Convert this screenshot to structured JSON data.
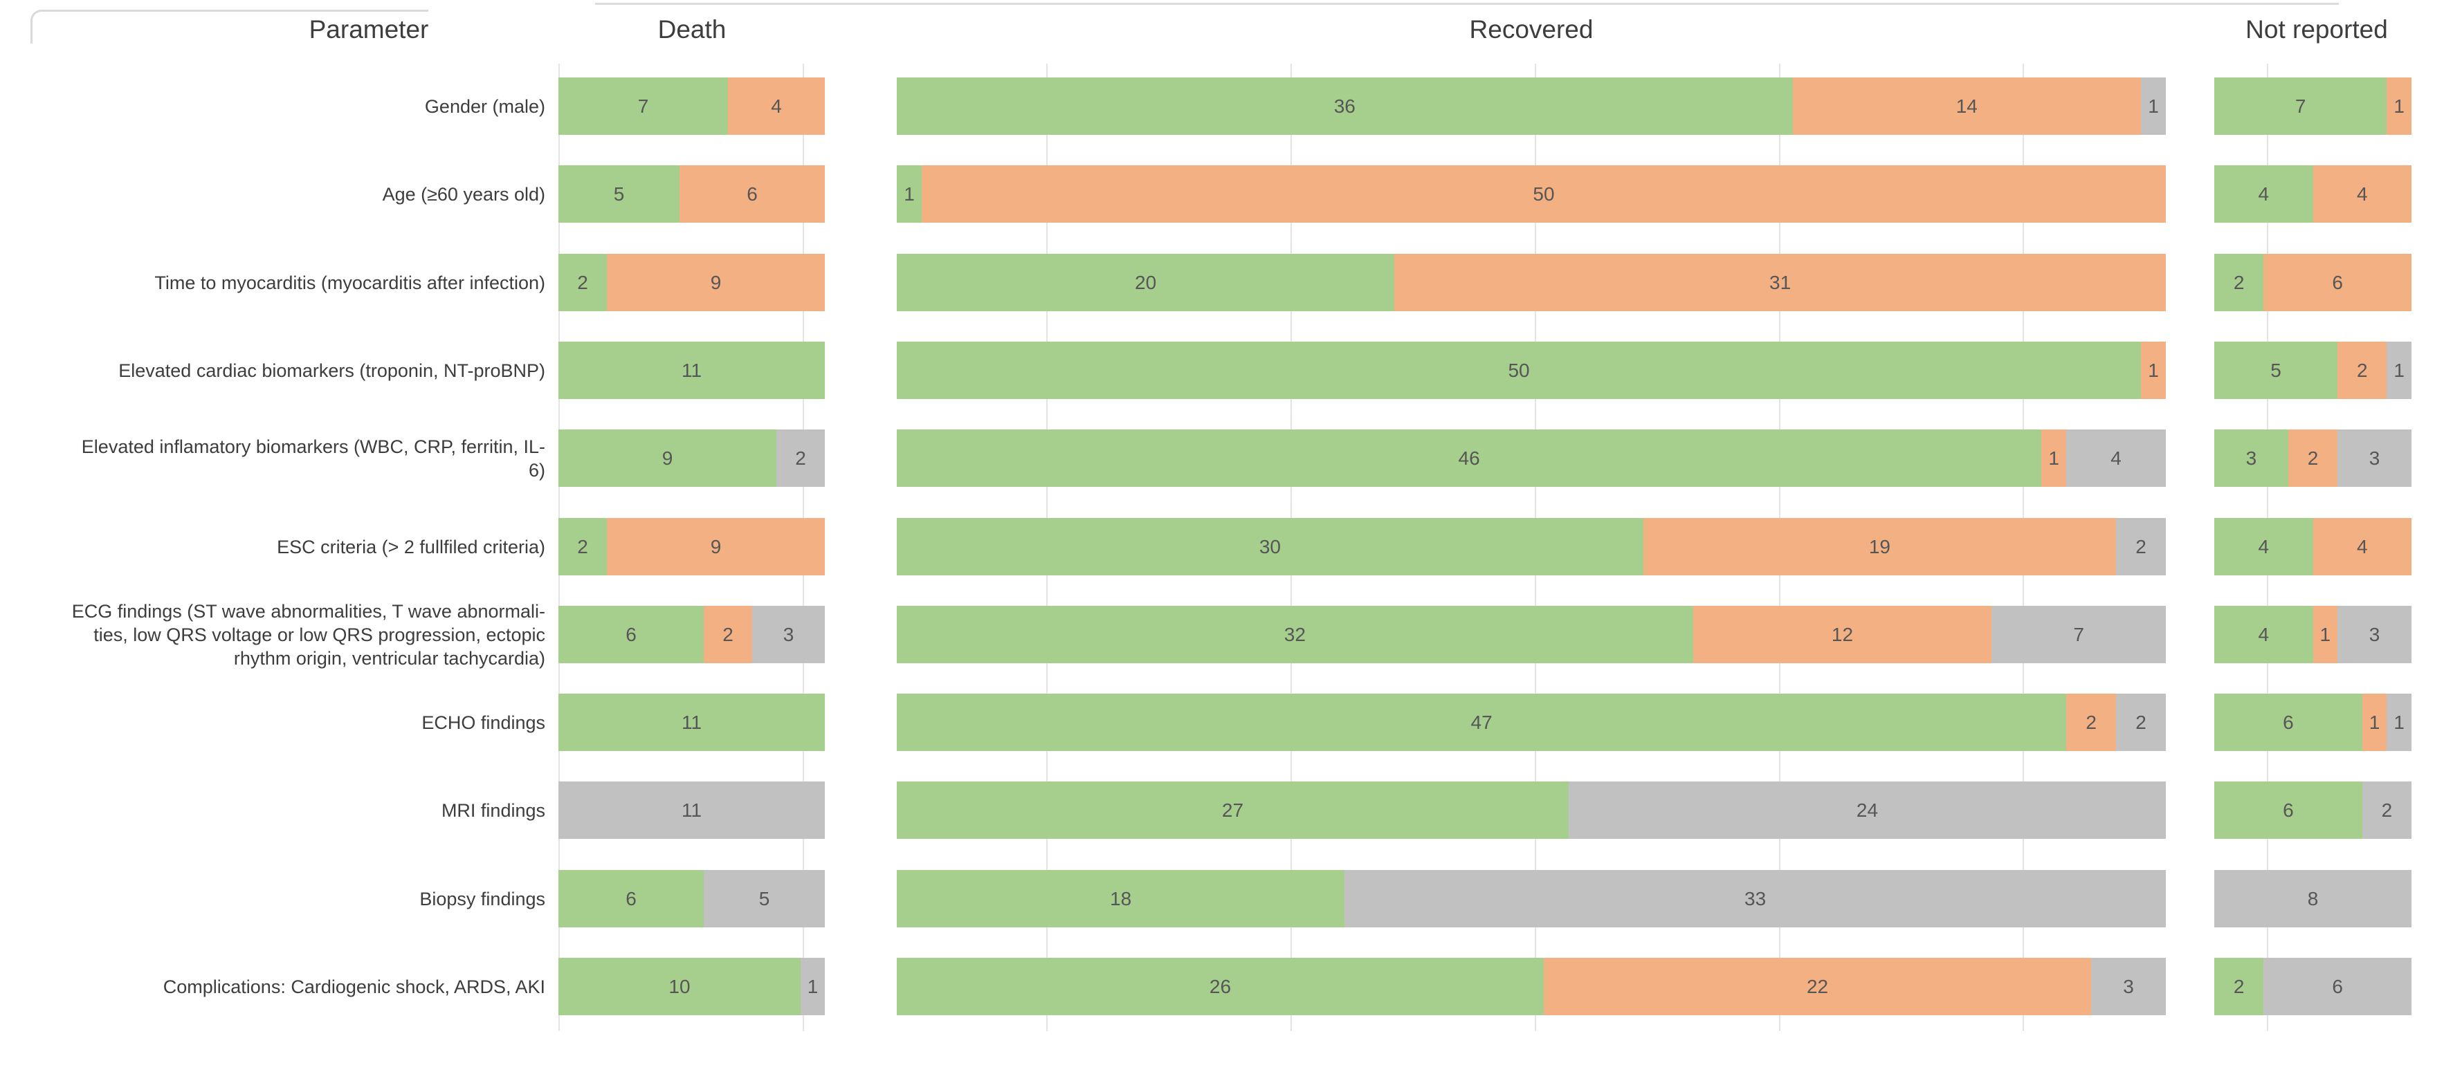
{
  "headers": {
    "parameter": "Parameter",
    "death": "Death",
    "recovered": "Recovered",
    "not_reported": "Not reported"
  },
  "palette": {
    "green": "#a6cf8d",
    "orange": "#f3b183",
    "gray": "#c1c1c1",
    "gridline": "#e4e4e4",
    "label_text": "#3d3d3d",
    "value_text": "#565656",
    "frame": "#dadada"
  },
  "rows": [
    {
      "label": "Gender (male)",
      "death": [
        [
          "green",
          7
        ],
        [
          "orange",
          4
        ]
      ],
      "recovered": [
        [
          "green",
          36
        ],
        [
          "orange",
          14
        ],
        [
          "gray",
          1
        ]
      ],
      "not_reported": [
        [
          "green",
          7
        ],
        [
          "orange",
          1
        ]
      ]
    },
    {
      "label": "Age (≥60 years old)",
      "death": [
        [
          "green",
          5
        ],
        [
          "orange",
          6
        ]
      ],
      "recovered": [
        [
          "green",
          1
        ],
        [
          "orange",
          50
        ]
      ],
      "not_reported": [
        [
          "green",
          4
        ],
        [
          "orange",
          4
        ]
      ]
    },
    {
      "label": "Time to myocarditis (myocarditis after infection)",
      "death": [
        [
          "green",
          2
        ],
        [
          "orange",
          9
        ]
      ],
      "recovered": [
        [
          "green",
          20
        ],
        [
          "orange",
          31
        ]
      ],
      "not_reported": [
        [
          "green",
          2
        ],
        [
          "orange",
          6
        ]
      ]
    },
    {
      "label": "Elevated cardiac biomarkers (troponin, NT-proBNP)",
      "death": [
        [
          "green",
          11
        ]
      ],
      "recovered": [
        [
          "green",
          50
        ],
        [
          "orange",
          1
        ]
      ],
      "not_reported": [
        [
          "green",
          5
        ],
        [
          "orange",
          2
        ],
        [
          "gray",
          1
        ]
      ]
    },
    {
      "label": "Elevated inflamatory biomarkers (WBC, CRP, ferritin, IL-\n6)",
      "death": [
        [
          "green",
          9
        ],
        [
          "gray",
          2
        ]
      ],
      "recovered": [
        [
          "green",
          46
        ],
        [
          "orange",
          1
        ],
        [
          "gray",
          4
        ]
      ],
      "not_reported": [
        [
          "green",
          3
        ],
        [
          "orange",
          2
        ],
        [
          "gray",
          3
        ]
      ]
    },
    {
      "label": "ESC criteria (> 2 fullfiled criteria)",
      "death": [
        [
          "green",
          2
        ],
        [
          "orange",
          9
        ]
      ],
      "recovered": [
        [
          "green",
          30
        ],
        [
          "orange",
          19
        ],
        [
          "gray",
          2
        ]
      ],
      "not_reported": [
        [
          "green",
          4
        ],
        [
          "orange",
          4
        ]
      ]
    },
    {
      "label": "ECG findings (ST wave abnormalities, T wave abnormali-\nties, low QRS voltage or low QRS progression, ectopic\nrhythm origin, ventricular tachycardia)",
      "death": [
        [
          "green",
          6
        ],
        [
          "orange",
          2
        ],
        [
          "gray",
          3
        ]
      ],
      "recovered": [
        [
          "green",
          32
        ],
        [
          "orange",
          12
        ],
        [
          "gray",
          7
        ]
      ],
      "not_reported": [
        [
          "green",
          4
        ],
        [
          "orange",
          1
        ],
        [
          "gray",
          3
        ]
      ]
    },
    {
      "label": "ECHO findings",
      "death": [
        [
          "green",
          11
        ]
      ],
      "recovered": [
        [
          "green",
          47
        ],
        [
          "orange",
          2
        ],
        [
          "gray",
          2
        ]
      ],
      "not_reported": [
        [
          "green",
          6
        ],
        [
          "orange",
          1
        ],
        [
          "gray",
          1
        ]
      ]
    },
    {
      "label": "MRI findings",
      "death": [
        [
          "gray",
          11
        ]
      ],
      "recovered": [
        [
          "green",
          27
        ],
        [
          "gray",
          24
        ]
      ],
      "not_reported": [
        [
          "green",
          6
        ],
        [
          "gray",
          2
        ]
      ]
    },
    {
      "label": "Biopsy findings",
      "death": [
        [
          "green",
          6
        ],
        [
          "gray",
          5
        ]
      ],
      "recovered": [
        [
          "green",
          18
        ],
        [
          "gray",
          33
        ]
      ],
      "not_reported": [
        [
          "gray",
          8
        ]
      ]
    },
    {
      "label": "Complications: Cardiogenic shock, ARDS, AKI",
      "death": [
        [
          "green",
          10
        ],
        [
          "gray",
          1
        ]
      ],
      "recovered": [
        [
          "green",
          26
        ],
        [
          "orange",
          22
        ],
        [
          "gray",
          3
        ]
      ],
      "not_reported": [
        [
          "green",
          2
        ],
        [
          "gray",
          6
        ]
      ]
    }
  ],
  "chart_data": {
    "type": "bar",
    "orientation": "horizontal",
    "stacked": true,
    "grid": true,
    "legend": null,
    "column_headers": [
      "Parameter",
      "Death",
      "Recovered",
      "Not reported"
    ],
    "categories": [
      "Gender (male)",
      "Age (≥60 years old)",
      "Time to myocarditis (myocarditis after infection)",
      "Elevated cardiac biomarkers (troponin, NT-proBNP)",
      "Elevated inflamatory biomarkers (WBC, CRP, ferritin, IL-6)",
      "ESC criteria (> 2 fullfiled criteria)",
      "ECG findings (ST wave abnormalities, T wave abnormalities, low QRS voltage or low QRS progression, ectopic rhythm origin, ventricular tachycardia)",
      "ECHO findings",
      "MRI findings",
      "Biopsy findings",
      "Complications: Cardiogenic shock, ARDS, AKI"
    ],
    "panels": [
      {
        "name": "Death",
        "row_total": 11,
        "series": [
          {
            "name": "green",
            "values": [
              7,
              5,
              2,
              11,
              9,
              2,
              6,
              11,
              0,
              6,
              10
            ]
          },
          {
            "name": "orange",
            "values": [
              4,
              6,
              9,
              0,
              0,
              9,
              2,
              0,
              0,
              0,
              0
            ]
          },
          {
            "name": "gray",
            "values": [
              0,
              0,
              0,
              0,
              2,
              0,
              3,
              0,
              11,
              5,
              1
            ]
          }
        ]
      },
      {
        "name": "Recovered",
        "row_total": 51,
        "series": [
          {
            "name": "green",
            "values": [
              36,
              1,
              20,
              50,
              46,
              30,
              32,
              47,
              27,
              18,
              26
            ]
          },
          {
            "name": "orange",
            "values": [
              14,
              50,
              31,
              1,
              1,
              19,
              12,
              2,
              0,
              0,
              22
            ]
          },
          {
            "name": "gray",
            "values": [
              1,
              0,
              0,
              0,
              4,
              2,
              7,
              2,
              24,
              33,
              3
            ]
          }
        ]
      },
      {
        "name": "Not reported",
        "row_total": 8,
        "series": [
          {
            "name": "green",
            "values": [
              7,
              4,
              2,
              5,
              3,
              4,
              4,
              6,
              6,
              0,
              2
            ]
          },
          {
            "name": "orange",
            "values": [
              1,
              4,
              6,
              2,
              2,
              4,
              1,
              1,
              0,
              0,
              0
            ]
          },
          {
            "name": "gray",
            "values": [
              0,
              0,
              0,
              1,
              3,
              0,
              3,
              1,
              2,
              8,
              6
            ]
          }
        ]
      }
    ]
  }
}
